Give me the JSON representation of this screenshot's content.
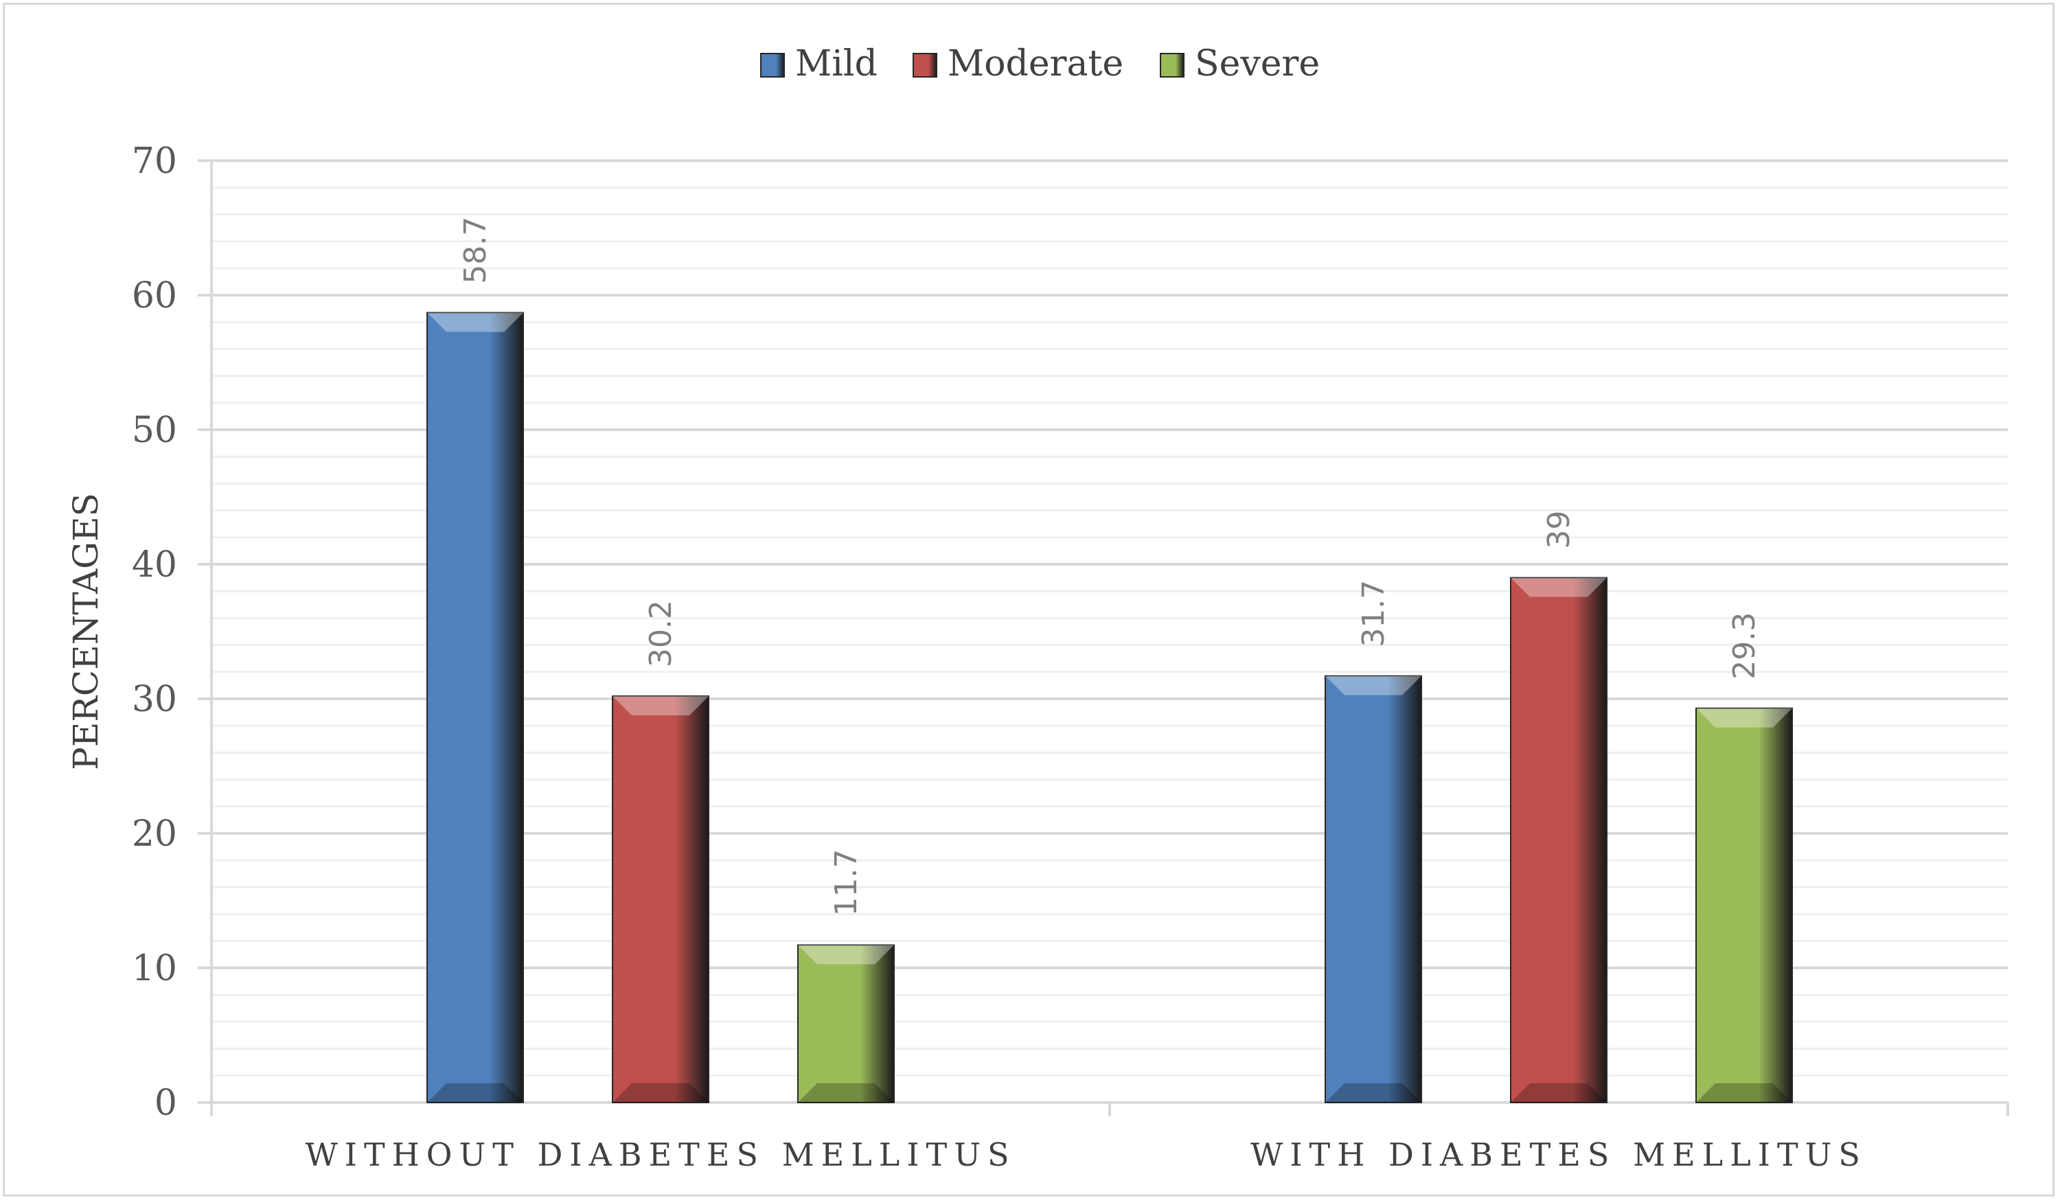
{
  "chart_data": {
    "type": "bar",
    "categories": [
      "WITHOUT DIABETES MELLITUS",
      "WITH DIABETES MELLITUS"
    ],
    "series": [
      {
        "name": "Mild",
        "values": [
          58.7,
          31.7
        ],
        "color": "#4f81bd"
      },
      {
        "name": "Moderate",
        "values": [
          30.2,
          39
        ],
        "color": "#c0504d"
      },
      {
        "name": "Severe",
        "values": [
          11.7,
          29.3
        ],
        "color": "#9bbb59"
      }
    ],
    "data_labels": [
      [
        "58.7",
        "31.7"
      ],
      [
        "30.2",
        "39"
      ],
      [
        "11.7",
        "29.3"
      ]
    ],
    "ylabel": "PERCENTAGES",
    "xlabel": "",
    "ylim": [
      0,
      70
    ],
    "yticks": [
      0,
      10,
      20,
      30,
      40,
      50,
      60,
      70
    ],
    "grid": true,
    "legend_position": "top"
  }
}
